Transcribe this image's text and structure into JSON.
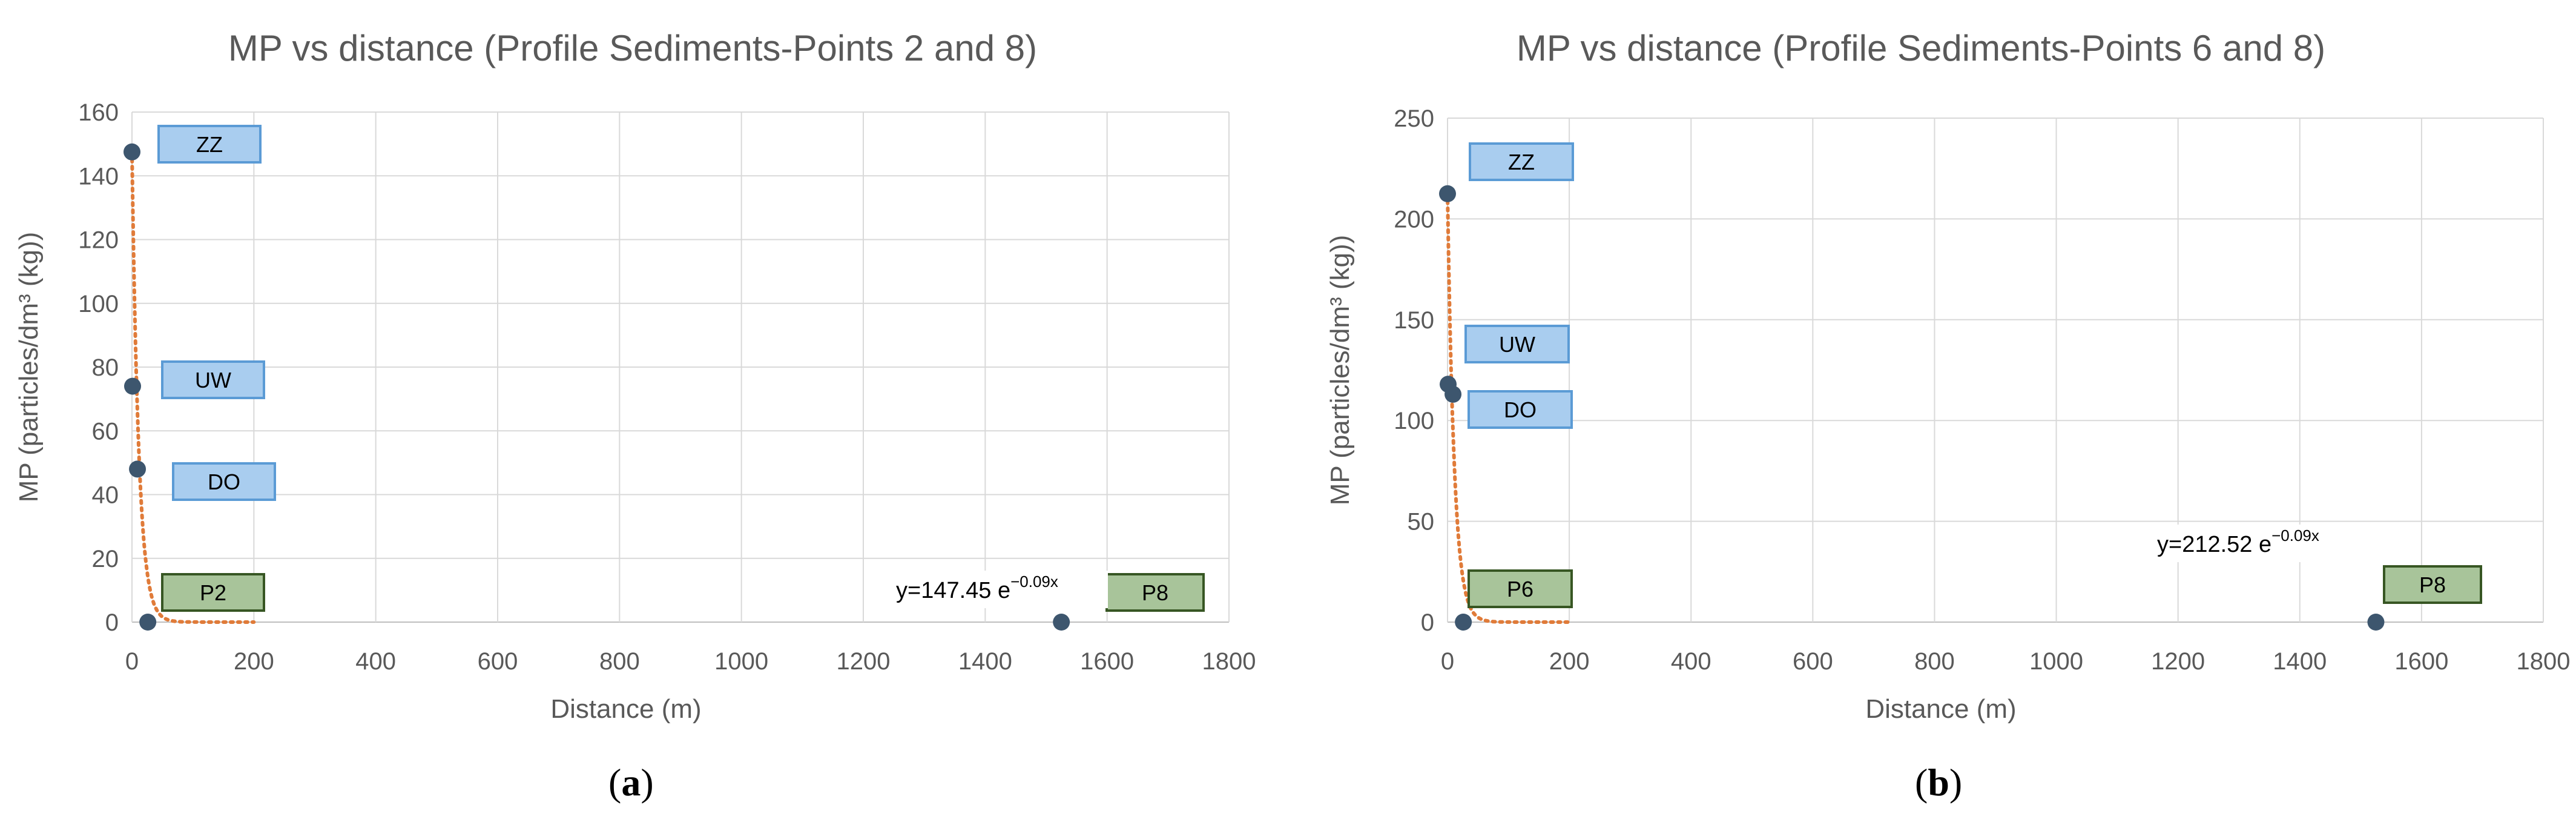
{
  "chart_data": [
    {
      "type": "scatter",
      "panel": "a",
      "title": "MP vs distance (Profile Sediments-Points  2 and 8)",
      "xlabel": "Distance (m)",
      "ylabel": "MP (particles/dm³ (kg))",
      "xlim": [
        0,
        1800
      ],
      "ylim": [
        0,
        160
      ],
      "xticks": [
        0,
        200,
        400,
        600,
        800,
        1000,
        1200,
        1400,
        1600,
        1800
      ],
      "yticks": [
        0,
        20,
        40,
        60,
        80,
        100,
        120,
        140,
        160
      ],
      "grid": true,
      "points": [
        {
          "x": 0,
          "y": 147.5
        },
        {
          "x": 1,
          "y": 74
        },
        {
          "x": 9,
          "y": 48
        },
        {
          "x": 26,
          "y": 0
        },
        {
          "x": 1525,
          "y": 0
        }
      ],
      "trendline": {
        "type": "exponential",
        "a": 147.45,
        "b": -0.09
      },
      "trendline_label": {
        "prefix": "y=147.45 e",
        "exponent": "−0.09x"
      },
      "point_labels": [
        {
          "text": "ZZ",
          "style": "blue"
        },
        {
          "text": "UW",
          "style": "blue"
        },
        {
          "text": "DO",
          "style": "blue"
        },
        {
          "text": "P2",
          "style": "green"
        },
        {
          "text": "P8",
          "style": "green"
        }
      ],
      "caption": {
        "open": "(",
        "letter": "a",
        "close": ")"
      }
    },
    {
      "type": "scatter",
      "panel": "b",
      "title": "MP vs distance (Profile Sediments-Points  6 and 8)",
      "xlabel": "Distance (m)",
      "ylabel": "MP (particles/dm³ (kg))",
      "xlim": [
        0,
        1800
      ],
      "ylim": [
        0,
        250
      ],
      "xticks": [
        0,
        200,
        400,
        600,
        800,
        1000,
        1200,
        1400,
        1600,
        1800
      ],
      "yticks": [
        0,
        50,
        100,
        150,
        200,
        250
      ],
      "grid": true,
      "points": [
        {
          "x": 0,
          "y": 212.5
        },
        {
          "x": 1,
          "y": 118
        },
        {
          "x": 9,
          "y": 113
        },
        {
          "x": 26,
          "y": 0
        },
        {
          "x": 1525,
          "y": 0
        }
      ],
      "trendline": {
        "type": "exponential",
        "a": 212.52,
        "b": -0.09
      },
      "trendline_label": {
        "prefix": "y=212.52 e",
        "exponent": "−0.09x"
      },
      "point_labels": [
        {
          "text": "ZZ",
          "style": "blue"
        },
        {
          "text": "UW",
          "style": "blue"
        },
        {
          "text": "DO",
          "style": "blue"
        },
        {
          "text": "P6",
          "style": "green"
        },
        {
          "text": "P8",
          "style": "green"
        }
      ],
      "caption": {
        "open": "(",
        "letter": "b",
        "close": ")"
      }
    }
  ],
  "colors": {
    "marker": "#3d566e",
    "trendline": "#e07b39",
    "grid": "#d9d9d9",
    "axis": "#bfbfbf",
    "label_blue_fill": "#a9cdef",
    "label_blue_border": "#5b9bd5",
    "label_green_fill": "#a8c49a",
    "label_green_border": "#375623"
  }
}
